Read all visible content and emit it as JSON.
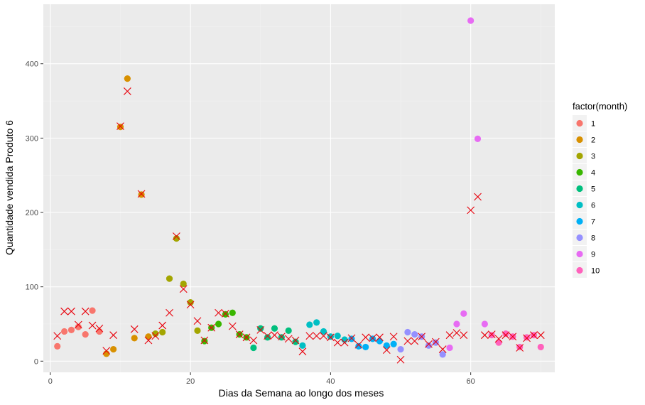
{
  "chart_data": {
    "type": "scatter",
    "title": "",
    "xlabel": "Dias da Semana ao longo dos meses",
    "ylabel": "Quantidade vendida Produto 6",
    "xlim": [
      -1,
      72
    ],
    "ylim": [
      -15,
      480
    ],
    "x_ticks": [
      0,
      20,
      40,
      60
    ],
    "y_ticks": [
      0,
      100,
      200,
      300,
      400
    ],
    "grid": true,
    "legend": {
      "title": "factor(month)",
      "placement": "right",
      "entries": [
        {
          "label": "1",
          "color": "#F8766D"
        },
        {
          "label": "2",
          "color": "#D89000"
        },
        {
          "label": "3",
          "color": "#A3A500"
        },
        {
          "label": "4",
          "color": "#39B600"
        },
        {
          "label": "5",
          "color": "#00BF7D"
        },
        {
          "label": "6",
          "color": "#00BFC4"
        },
        {
          "label": "7",
          "color": "#00B0F6"
        },
        {
          "label": "8",
          "color": "#9590FF"
        },
        {
          "label": "9",
          "color": "#E76BF3"
        },
        {
          "label": "10",
          "color": "#FF62BC"
        }
      ]
    },
    "series": [
      {
        "marker": "circle",
        "values": [
          {
            "x": 1,
            "y": 20,
            "month": "1"
          },
          {
            "x": 2,
            "y": 40,
            "month": "1"
          },
          {
            "x": 3,
            "y": 42,
            "month": "1"
          },
          {
            "x": 4,
            "y": 46,
            "month": "1"
          },
          {
            "x": 5,
            "y": 36,
            "month": "1"
          },
          {
            "x": 6,
            "y": 68,
            "month": "1"
          },
          {
            "x": 7,
            "y": 40,
            "month": "1"
          },
          {
            "x": 8,
            "y": 10,
            "month": "2"
          },
          {
            "x": 9,
            "y": 16,
            "month": "2"
          },
          {
            "x": 10,
            "y": 315,
            "month": "2"
          },
          {
            "x": 11,
            "y": 380,
            "month": "2"
          },
          {
            "x": 12,
            "y": 31,
            "month": "2"
          },
          {
            "x": 13,
            "y": 224,
            "month": "2"
          },
          {
            "x": 14,
            "y": 33,
            "month": "2"
          },
          {
            "x": 15,
            "y": 37,
            "month": "3"
          },
          {
            "x": 16,
            "y": 39,
            "month": "3"
          },
          {
            "x": 17,
            "y": 111,
            "month": "3"
          },
          {
            "x": 18,
            "y": 165,
            "month": "3"
          },
          {
            "x": 19,
            "y": 104,
            "month": "3"
          },
          {
            "x": 20,
            "y": 79,
            "month": "3"
          },
          {
            "x": 21,
            "y": 41,
            "month": "3"
          },
          {
            "x": 22,
            "y": 27,
            "month": "4"
          },
          {
            "x": 23,
            "y": 45,
            "month": "4"
          },
          {
            "x": 24,
            "y": 50,
            "month": "4"
          },
          {
            "x": 25,
            "y": 63,
            "month": "4"
          },
          {
            "x": 26,
            "y": 65,
            "month": "4"
          },
          {
            "x": 27,
            "y": 36,
            "month": "4"
          },
          {
            "x": 28,
            "y": 32,
            "month": "4"
          },
          {
            "x": 29,
            "y": 18,
            "month": "5"
          },
          {
            "x": 30,
            "y": 44,
            "month": "5"
          },
          {
            "x": 31,
            "y": 32,
            "month": "5"
          },
          {
            "x": 32,
            "y": 44,
            "month": "5"
          },
          {
            "x": 33,
            "y": 32,
            "month": "5"
          },
          {
            "x": 34,
            "y": 41,
            "month": "5"
          },
          {
            "x": 35,
            "y": 26,
            "month": "5"
          },
          {
            "x": 36,
            "y": 21,
            "month": "6"
          },
          {
            "x": 37,
            "y": 49,
            "month": "6"
          },
          {
            "x": 38,
            "y": 52,
            "month": "6"
          },
          {
            "x": 39,
            "y": 40,
            "month": "6"
          },
          {
            "x": 40,
            "y": 33,
            "month": "6"
          },
          {
            "x": 41,
            "y": 34,
            "month": "6"
          },
          {
            "x": 42,
            "y": 29,
            "month": "6"
          },
          {
            "x": 43,
            "y": 30,
            "month": "7"
          },
          {
            "x": 44,
            "y": 20,
            "month": "7"
          },
          {
            "x": 45,
            "y": 19,
            "month": "7"
          },
          {
            "x": 46,
            "y": 30,
            "month": "7"
          },
          {
            "x": 47,
            "y": 27,
            "month": "7"
          },
          {
            "x": 48,
            "y": 21,
            "month": "7"
          },
          {
            "x": 49,
            "y": 23,
            "month": "7"
          },
          {
            "x": 50,
            "y": 16,
            "month": "8"
          },
          {
            "x": 51,
            "y": 39,
            "month": "8"
          },
          {
            "x": 52,
            "y": 36,
            "month": "8"
          },
          {
            "x": 53,
            "y": 33,
            "month": "8"
          },
          {
            "x": 54,
            "y": 21,
            "month": "8"
          },
          {
            "x": 55,
            "y": 25,
            "month": "8"
          },
          {
            "x": 56,
            "y": 9,
            "month": "8"
          },
          {
            "x": 57,
            "y": 18,
            "month": "9"
          },
          {
            "x": 58,
            "y": 50,
            "month": "9"
          },
          {
            "x": 59,
            "y": 64,
            "month": "9"
          },
          {
            "x": 60,
            "y": 458,
            "month": "9"
          },
          {
            "x": 61,
            "y": 299,
            "month": "9"
          },
          {
            "x": 62,
            "y": 50,
            "month": "9"
          },
          {
            "x": 63,
            "y": 35,
            "month": "10"
          },
          {
            "x": 64,
            "y": 25,
            "month": "10"
          },
          {
            "x": 65,
            "y": 37,
            "month": "10"
          },
          {
            "x": 66,
            "y": 33,
            "month": "10"
          },
          {
            "x": 67,
            "y": 19,
            "month": "10"
          },
          {
            "x": 68,
            "y": 32,
            "month": "10"
          },
          {
            "x": 69,
            "y": 35,
            "month": "10"
          },
          {
            "x": 70,
            "y": 19,
            "month": "10"
          }
        ]
      },
      {
        "marker": "x",
        "color": "#E8000B",
        "values": [
          {
            "x": 1,
            "y": 34
          },
          {
            "x": 2,
            "y": 67
          },
          {
            "x": 3,
            "y": 67
          },
          {
            "x": 4,
            "y": 49
          },
          {
            "x": 5,
            "y": 67
          },
          {
            "x": 6,
            "y": 48
          },
          {
            "x": 7,
            "y": 44
          },
          {
            "x": 8,
            "y": 14
          },
          {
            "x": 9,
            "y": 35
          },
          {
            "x": 10,
            "y": 316
          },
          {
            "x": 11,
            "y": 363
          },
          {
            "x": 12,
            "y": 43
          },
          {
            "x": 13,
            "y": 225
          },
          {
            "x": 14,
            "y": 28
          },
          {
            "x": 15,
            "y": 34
          },
          {
            "x": 16,
            "y": 48
          },
          {
            "x": 17,
            "y": 65
          },
          {
            "x": 18,
            "y": 168
          },
          {
            "x": 19,
            "y": 97
          },
          {
            "x": 20,
            "y": 76
          },
          {
            "x": 21,
            "y": 54
          },
          {
            "x": 22,
            "y": 28
          },
          {
            "x": 23,
            "y": 45
          },
          {
            "x": 24,
            "y": 65
          },
          {
            "x": 25,
            "y": 64
          },
          {
            "x": 26,
            "y": 47
          },
          {
            "x": 27,
            "y": 36
          },
          {
            "x": 28,
            "y": 32
          },
          {
            "x": 29,
            "y": 28
          },
          {
            "x": 30,
            "y": 42
          },
          {
            "x": 31,
            "y": 34
          },
          {
            "x": 32,
            "y": 35
          },
          {
            "x": 33,
            "y": 33
          },
          {
            "x": 34,
            "y": 30
          },
          {
            "x": 35,
            "y": 28
          },
          {
            "x": 36,
            "y": 13
          },
          {
            "x": 37,
            "y": 34
          },
          {
            "x": 38,
            "y": 34
          },
          {
            "x": 39,
            "y": 34
          },
          {
            "x": 40,
            "y": 32
          },
          {
            "x": 41,
            "y": 25
          },
          {
            "x": 42,
            "y": 25
          },
          {
            "x": 43,
            "y": 31
          },
          {
            "x": 44,
            "y": 22
          },
          {
            "x": 45,
            "y": 32
          },
          {
            "x": 46,
            "y": 31
          },
          {
            "x": 47,
            "y": 32
          },
          {
            "x": 48,
            "y": 15
          },
          {
            "x": 49,
            "y": 33
          },
          {
            "x": 50,
            "y": 2
          },
          {
            "x": 51,
            "y": 27
          },
          {
            "x": 52,
            "y": 27
          },
          {
            "x": 53,
            "y": 33
          },
          {
            "x": 54,
            "y": 23
          },
          {
            "x": 55,
            "y": 26
          },
          {
            "x": 56,
            "y": 16
          },
          {
            "x": 57,
            "y": 35
          },
          {
            "x": 58,
            "y": 38
          },
          {
            "x": 59,
            "y": 35
          },
          {
            "x": 60,
            "y": 203
          },
          {
            "x": 61,
            "y": 221
          },
          {
            "x": 62,
            "y": 35
          },
          {
            "x": 63,
            "y": 36
          },
          {
            "x": 64,
            "y": 30
          },
          {
            "x": 65,
            "y": 35
          },
          {
            "x": 66,
            "y": 33
          },
          {
            "x": 67,
            "y": 18
          },
          {
            "x": 68,
            "y": 31
          },
          {
            "x": 69,
            "y": 35
          },
          {
            "x": 70,
            "y": 35
          }
        ]
      }
    ]
  },
  "style": {
    "panel_bg": "#EBEBEB",
    "grid_major": "#FFFFFF",
    "grid_minor": "#F2F2F2",
    "legend_key_bg": "#F2F2F2"
  }
}
